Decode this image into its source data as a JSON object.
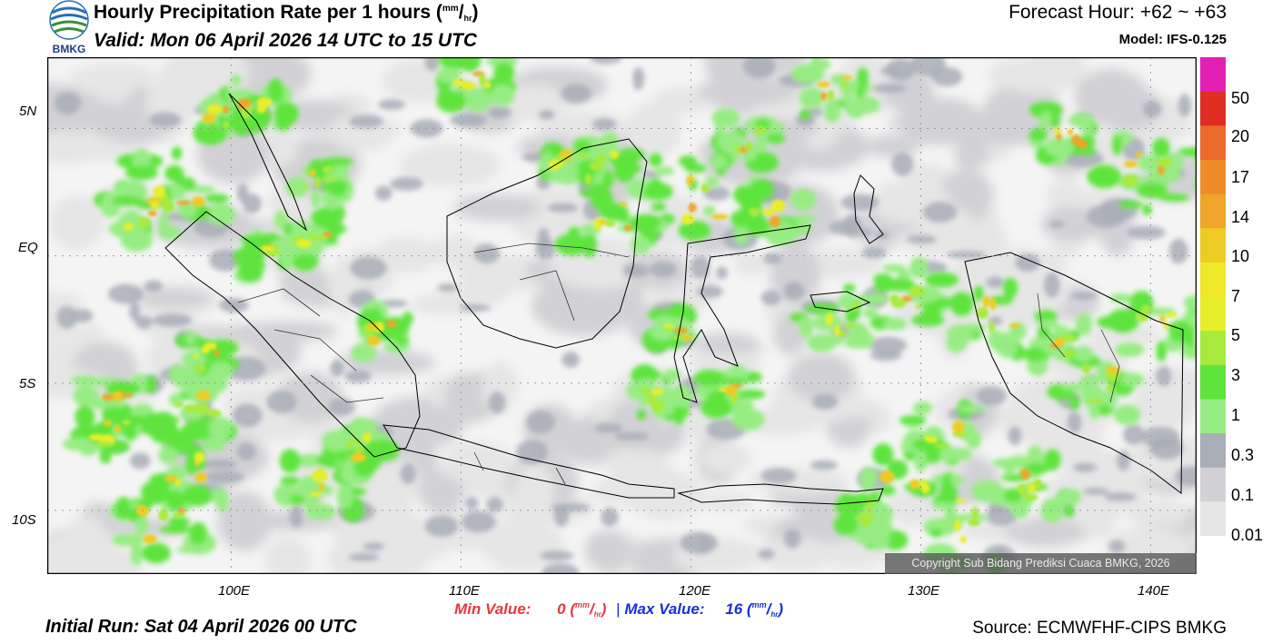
{
  "header": {
    "title_main": "Hourly Precipitation Rate per 1 hours (",
    "title_unit_num": "mm",
    "title_unit_sep": "/",
    "title_unit_den": "hr",
    "title_close": ")",
    "valid": "Valid: Mon 06 April 2026 14 UTC to 15 UTC",
    "forecast_hour": "Forecast Hour: +62 ~ +63",
    "model": "Model: IFS-0.125"
  },
  "logo": {
    "text": "BMKG",
    "icon": "bmkg-logo-icon"
  },
  "map": {
    "latitude_labels": [
      "5N",
      "EQ",
      "5S",
      "10S"
    ],
    "longitude_labels": [
      "100E",
      "110E",
      "120E",
      "130E",
      "140E"
    ],
    "extent": {
      "lon_min": 92,
      "lon_max": 142,
      "lat_min": -12.5,
      "lat_max": 7.8
    },
    "copyright": "Copyright Sub Bidang Prediksi Cuaca BMKG, 2026"
  },
  "colorbar": {
    "labels": [
      "50",
      "20",
      "17",
      "14",
      "10",
      "7",
      "5",
      "3",
      "1",
      "0.3",
      "0.1",
      "0.01"
    ],
    "colors": [
      "#e41fb4",
      "#e02d23",
      "#ea6a2a",
      "#ee8c28",
      "#eea52a",
      "#eecb22",
      "#eee72a",
      "#e6ef2a",
      "#a8ea3c",
      "#5fe43c",
      "#96ec82",
      "#a8adb7",
      "#d2d2d6",
      "#e6e6e6"
    ]
  },
  "footer": {
    "min_label": "Min Value:",
    "min_value": "0",
    "max_label": "Max Value:",
    "max_value": "16",
    "unit_num": "mm",
    "unit_sep": "/",
    "unit_den": "hr",
    "separator": "|",
    "initial_run": "Initial Run: Sat 04 April 2026 00 UTC",
    "source": "Source: ECMWFHF-CIPS BMKG"
  }
}
